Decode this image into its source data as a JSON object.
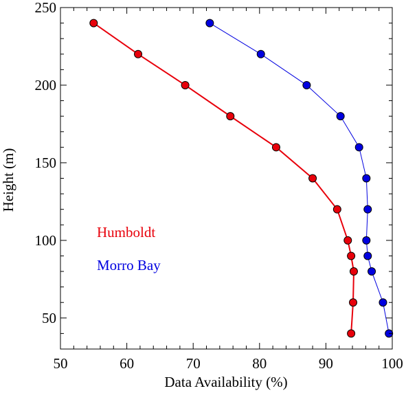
{
  "chart_data": {
    "type": "line",
    "title": "",
    "xlabel": "Data Availability (%)",
    "ylabel": "Height (m)",
    "xlim": [
      50,
      100
    ],
    "ylim": [
      30,
      250
    ],
    "x_ticks": [
      50,
      60,
      70,
      80,
      90,
      100
    ],
    "y_ticks": [
      50,
      100,
      150,
      200,
      250
    ],
    "grid": false,
    "legend": "text labels inside plot, middle-left",
    "series": [
      {
        "name": "Humboldt",
        "color": "#e8000b",
        "points": [
          {
            "x": 55.0,
            "y": 240
          },
          {
            "x": 61.7,
            "y": 220
          },
          {
            "x": 68.8,
            "y": 200
          },
          {
            "x": 75.6,
            "y": 180
          },
          {
            "x": 82.5,
            "y": 160
          },
          {
            "x": 88.0,
            "y": 140
          },
          {
            "x": 91.7,
            "y": 120
          },
          {
            "x": 93.3,
            "y": 100
          },
          {
            "x": 93.8,
            "y": 90
          },
          {
            "x": 94.2,
            "y": 80
          },
          {
            "x": 94.1,
            "y": 60
          },
          {
            "x": 93.8,
            "y": 40
          }
        ]
      },
      {
        "name": "Morro Bay",
        "color": "#0000e0",
        "points": [
          {
            "x": 72.5,
            "y": 240
          },
          {
            "x": 80.2,
            "y": 220
          },
          {
            "x": 87.1,
            "y": 200
          },
          {
            "x": 92.2,
            "y": 180
          },
          {
            "x": 95.0,
            "y": 160
          },
          {
            "x": 96.1,
            "y": 140
          },
          {
            "x": 96.3,
            "y": 120
          },
          {
            "x": 96.1,
            "y": 100
          },
          {
            "x": 96.3,
            "y": 90
          },
          {
            "x": 96.9,
            "y": 80
          },
          {
            "x": 98.6,
            "y": 60
          },
          {
            "x": 99.5,
            "y": 40
          }
        ]
      }
    ]
  }
}
